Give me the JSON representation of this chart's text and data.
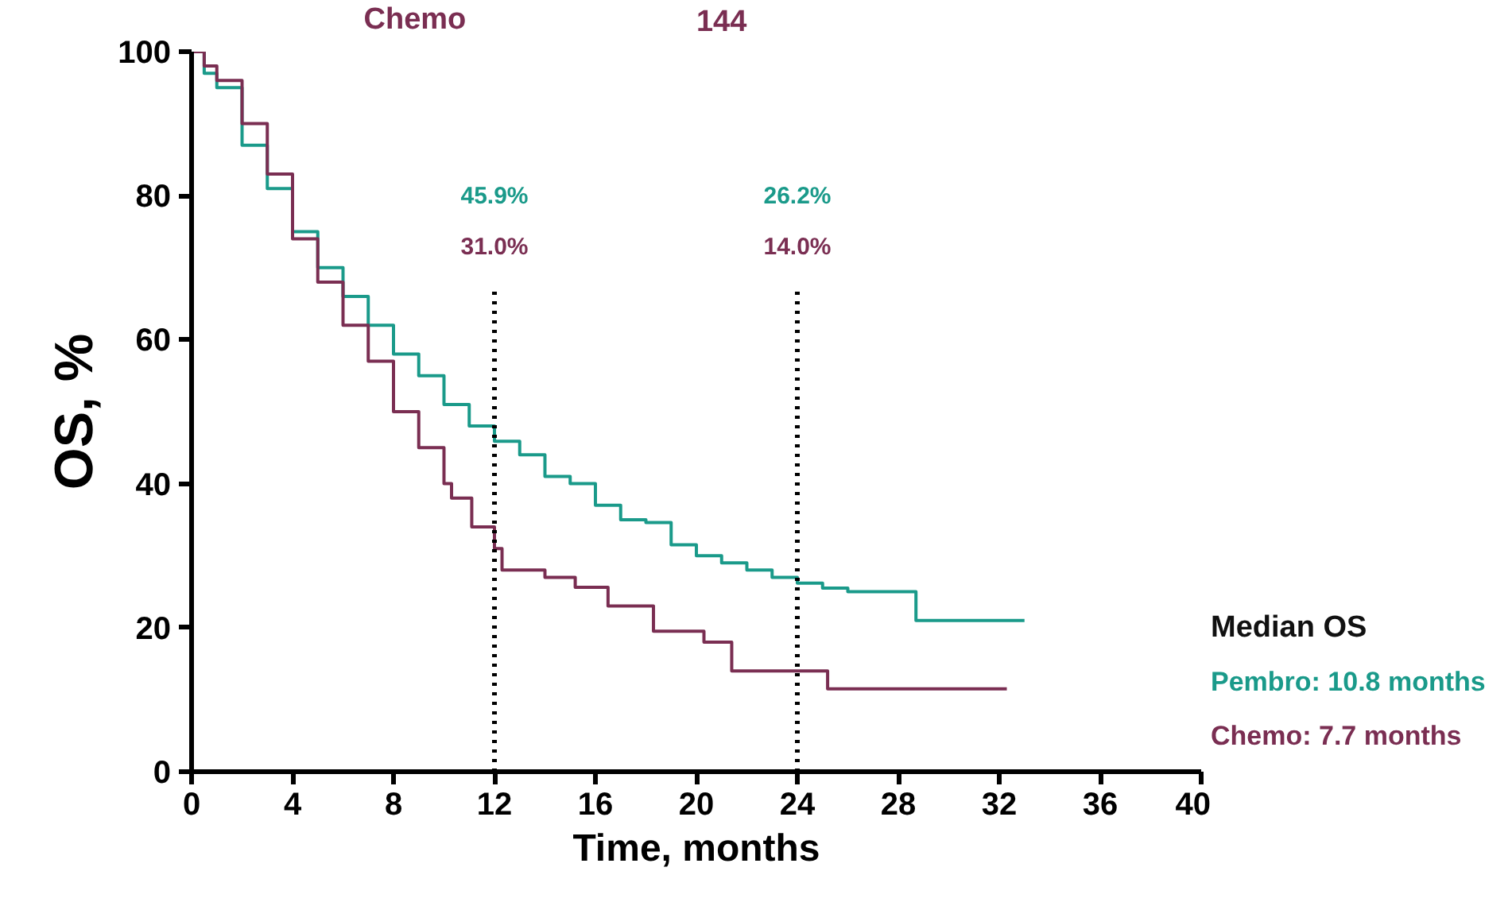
{
  "chart_data": {
    "type": "step",
    "xlabel": "Time, months",
    "ylabel": "OS, %",
    "legend_title": "Median OS",
    "grid": false,
    "marker": "none",
    "line_style": "solid",
    "xlim": [
      0,
      40
    ],
    "xticks": [
      0,
      4,
      8,
      12,
      16,
      20,
      24,
      28,
      32,
      36,
      40
    ],
    "ylim": [
      0,
      100
    ],
    "yticks": [
      0,
      20,
      40,
      60,
      80,
      100
    ],
    "series": [
      {
        "name": "Pembro: 10.8 months",
        "color": "#1a9a8a",
        "x": [
          0,
          0.5,
          1,
          2,
          3,
          4,
          5,
          6,
          7,
          8,
          9,
          10,
          11,
          12,
          13,
          14,
          15,
          16,
          17,
          18,
          19,
          20,
          21,
          22,
          23,
          24,
          25,
          26,
          28.7,
          33
        ],
        "values": [
          100,
          97,
          95,
          87,
          81,
          75,
          70,
          66,
          62,
          58,
          55,
          51,
          48,
          45.9,
          44,
          41,
          40,
          37,
          35,
          34.6,
          31.5,
          30,
          29,
          28,
          27,
          26.2,
          25.5,
          25,
          21,
          21
        ]
      },
      {
        "name": "Chemo: 7.7 months",
        "color": "#7a2e52",
        "x": [
          0,
          0.5,
          1,
          2,
          3,
          4,
          5,
          6,
          7,
          8,
          9,
          10,
          10.3,
          11.1,
          12,
          12.3,
          14,
          15.2,
          16.5,
          18.3,
          20.3,
          21.4,
          24,
          25.2,
          32.3
        ],
        "values": [
          100,
          98,
          96,
          90,
          83,
          74,
          68,
          62,
          57,
          50,
          45,
          40,
          38,
          34,
          31,
          28,
          27,
          25.6,
          23,
          19.5,
          18,
          14,
          14,
          11.5,
          11.5
        ]
      }
    ],
    "ref_lines": [
      {
        "axis": "x",
        "value": 12,
        "line_style": "dotted",
        "color": "#000000"
      },
      {
        "axis": "x",
        "value": 24,
        "line_style": "dotted",
        "color": "#000000"
      }
    ],
    "annotations": [
      "45.9%",
      "31.0%",
      "26.2%",
      "14.0%",
      "Chemo",
      "144"
    ]
  }
}
